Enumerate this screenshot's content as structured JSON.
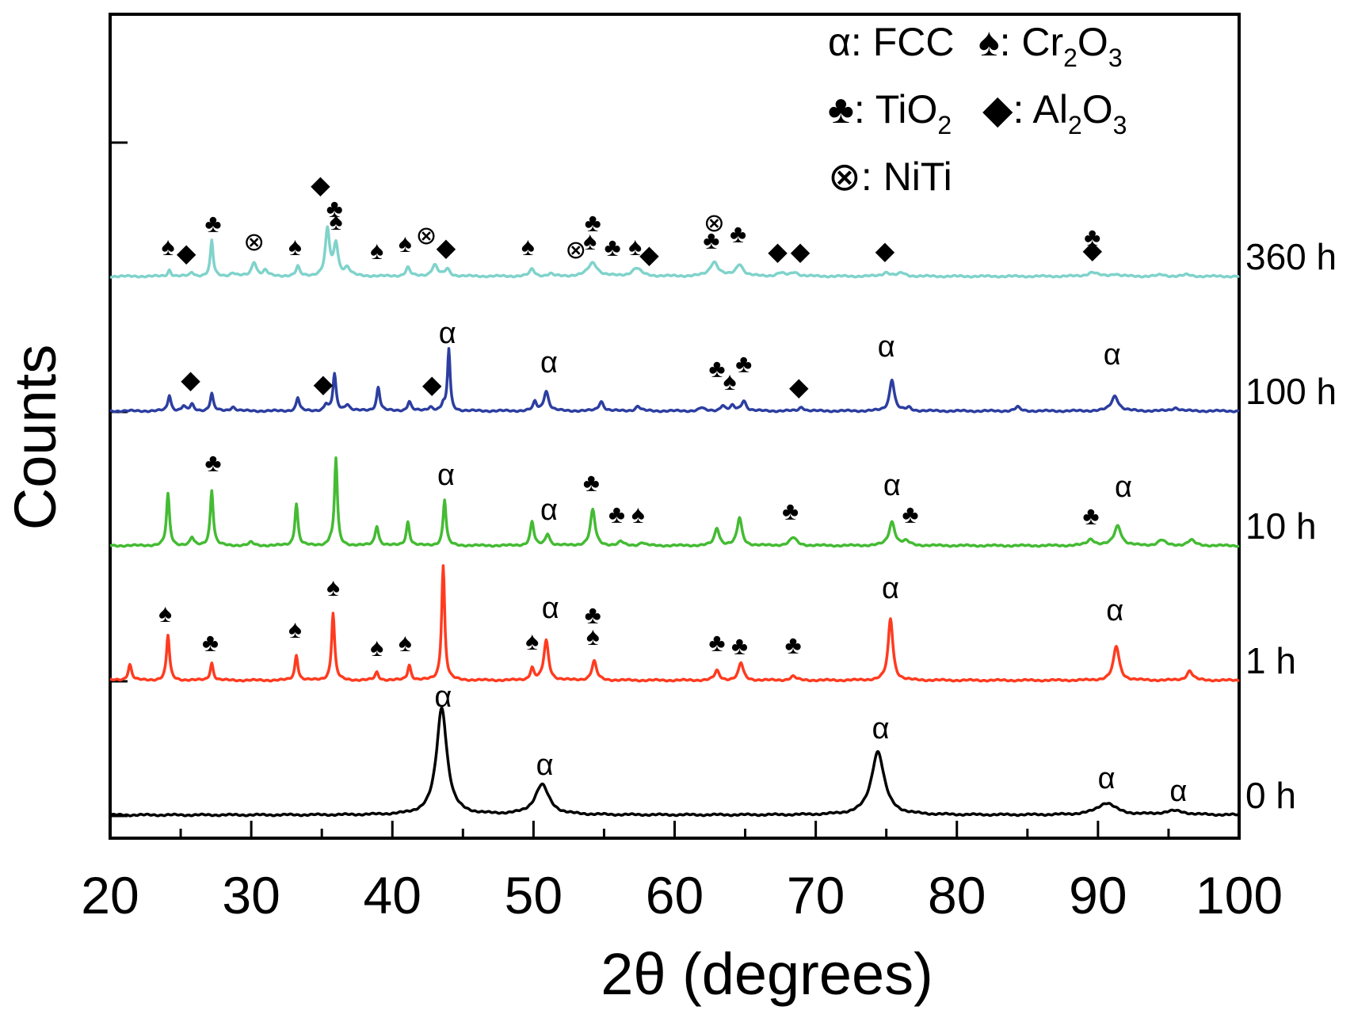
{
  "chart_data": {
    "type": "line",
    "title": "",
    "xlabel": "2θ (degrees)",
    "ylabel": "Counts",
    "xlim": [
      20,
      100
    ],
    "xticks": [
      "20",
      "30",
      "40",
      "50",
      "60",
      "70",
      "80",
      "90",
      "100"
    ],
    "grid": false,
    "legend_position": "top-right",
    "legend": [
      {
        "symbol": "α",
        "sep": ":",
        "name": "FCC",
        "base": "",
        "sub": ""
      },
      {
        "symbol": "spade",
        "sep": ":",
        "name": "",
        "base": "Cr",
        "sub": "2",
        "base2": "O",
        "sub2": "3"
      },
      {
        "symbol": "club",
        "sep": ":",
        "name": "",
        "base": "TiO",
        "sub": "2",
        "base2": "",
        "sub2": ""
      },
      {
        "symbol": "diamond",
        "sep": ":",
        "name": "",
        "base": "Al",
        "sub": "2",
        "base2": "O",
        "sub2": "3"
      },
      {
        "symbol": "⊗",
        "sep": ":",
        "name": "NiTi",
        "base": "",
        "sub": ""
      }
    ],
    "series": [
      {
        "name": "0 h",
        "color": "#000000",
        "offset": 0,
        "peaks": [
          [
            43.5,
            135,
            0.45
          ],
          [
            50.6,
            38,
            0.6
          ],
          [
            74.4,
            80,
            0.55
          ],
          [
            90.6,
            15,
            0.8
          ],
          [
            95.4,
            5,
            0.9
          ]
        ],
        "markers": [
          {
            "x": 43.6,
            "h": 138,
            "kind": "alpha"
          },
          {
            "x": 50.8,
            "h": 52,
            "kind": "alpha"
          },
          {
            "x": 74.6,
            "h": 98,
            "kind": "alpha"
          },
          {
            "x": 90.6,
            "h": 35,
            "kind": "alpha"
          },
          {
            "x": 95.7,
            "h": 19,
            "kind": "alpha"
          }
        ]
      },
      {
        "name": "1 h",
        "color": "#ff3b1f",
        "offset": 1,
        "peaks": [
          [
            21.4,
            20,
            0.15
          ],
          [
            24.1,
            57,
            0.13
          ],
          [
            27.2,
            22,
            0.13
          ],
          [
            33.2,
            32,
            0.13
          ],
          [
            35.8,
            85,
            0.13
          ],
          [
            38.9,
            10,
            0.15
          ],
          [
            41.2,
            19,
            0.14
          ],
          [
            43.6,
            145,
            0.13
          ],
          [
            49.9,
            15,
            0.15
          ],
          [
            50.9,
            50,
            0.2
          ],
          [
            54.3,
            24,
            0.2
          ],
          [
            63.0,
            12,
            0.2
          ],
          [
            64.7,
            22,
            0.2
          ],
          [
            68.4,
            5,
            0.25
          ],
          [
            75.3,
            78,
            0.2
          ],
          [
            91.3,
            43,
            0.25
          ],
          [
            96.5,
            12,
            0.25
          ]
        ],
        "markers": [
          {
            "x": 23.9,
            "h": 75,
            "kind": "spade"
          },
          {
            "x": 27.1,
            "h": 38,
            "kind": "club"
          },
          {
            "x": 33.1,
            "h": 55,
            "kind": "spade"
          },
          {
            "x": 35.8,
            "h": 108,
            "kind": "spade"
          },
          {
            "x": 38.9,
            "h": 32,
            "kind": "spade"
          },
          {
            "x": 40.9,
            "h": 38,
            "kind": "spade"
          },
          {
            "x": 49.9,
            "h": 40,
            "kind": "spade"
          },
          {
            "x": 51.2,
            "h": 80,
            "kind": "alpha"
          },
          {
            "x": 54.2,
            "h": 46,
            "kind": "spade"
          },
          {
            "x": 54.2,
            "h": 73,
            "kind": "club"
          },
          {
            "x": 63.0,
            "h": 38,
            "kind": "club"
          },
          {
            "x": 64.6,
            "h": 34,
            "kind": "club"
          },
          {
            "x": 68.4,
            "h": 35,
            "kind": "club"
          },
          {
            "x": 75.3,
            "h": 105,
            "kind": "alpha"
          },
          {
            "x": 91.2,
            "h": 77,
            "kind": "alpha"
          }
        ]
      },
      {
        "name": "10 h",
        "color": "#44bb33",
        "offset": 2,
        "peaks": [
          [
            24.1,
            65,
            0.13
          ],
          [
            25.8,
            10,
            0.15
          ],
          [
            27.2,
            70,
            0.13
          ],
          [
            30.0,
            4,
            0.2
          ],
          [
            33.2,
            53,
            0.13
          ],
          [
            35.6,
            5,
            0.15
          ],
          [
            36.0,
            110,
            0.12
          ],
          [
            38.9,
            25,
            0.15
          ],
          [
            41.1,
            30,
            0.14
          ],
          [
            43.7,
            58,
            0.13
          ],
          [
            49.9,
            30,
            0.15
          ],
          [
            51.0,
            15,
            0.18
          ],
          [
            54.2,
            45,
            0.2
          ],
          [
            56.2,
            5,
            0.2
          ],
          [
            57.7,
            4,
            0.2
          ],
          [
            63.0,
            22,
            0.2
          ],
          [
            64.6,
            35,
            0.2
          ],
          [
            68.4,
            10,
            0.3
          ],
          [
            75.4,
            30,
            0.25
          ],
          [
            76.4,
            5,
            0.3
          ],
          [
            89.5,
            8,
            0.3
          ],
          [
            91.4,
            25,
            0.3
          ],
          [
            94.5,
            7,
            0.3
          ],
          [
            96.6,
            7,
            0.3
          ]
        ],
        "markers": [
          {
            "x": 27.3,
            "h": 95,
            "kind": "club"
          },
          {
            "x": 43.8,
            "h": 78,
            "kind": "alpha"
          },
          {
            "x": 51.1,
            "h": 34,
            "kind": "alpha"
          },
          {
            "x": 54.1,
            "h": 70,
            "kind": "club"
          },
          {
            "x": 55.9,
            "h": 30,
            "kind": "club"
          },
          {
            "x": 57.4,
            "h": 30,
            "kind": "spade"
          },
          {
            "x": 68.2,
            "h": 34,
            "kind": "club"
          },
          {
            "x": 75.4,
            "h": 65,
            "kind": "alpha"
          },
          {
            "x": 76.7,
            "h": 30,
            "kind": "club"
          },
          {
            "x": 89.5,
            "h": 28,
            "kind": "club"
          },
          {
            "x": 91.8,
            "h": 63,
            "kind": "alpha"
          }
        ]
      },
      {
        "name": "100 h",
        "color": "#2c3ea0",
        "offset": 3,
        "peaks": [
          [
            24.2,
            20,
            0.13
          ],
          [
            25.2,
            6,
            0.15
          ],
          [
            25.8,
            8,
            0.15
          ],
          [
            27.2,
            22,
            0.13
          ],
          [
            28.7,
            5,
            0.2
          ],
          [
            33.3,
            17,
            0.13
          ],
          [
            35.3,
            8,
            0.15
          ],
          [
            35.9,
            46,
            0.13
          ],
          [
            36.8,
            8,
            0.2
          ],
          [
            39.0,
            30,
            0.14
          ],
          [
            41.2,
            12,
            0.15
          ],
          [
            42.7,
            5,
            0.2
          ],
          [
            43.6,
            8,
            0.13
          ],
          [
            44.0,
            78,
            0.11
          ],
          [
            50.1,
            11,
            0.15
          ],
          [
            50.9,
            25,
            0.2
          ],
          [
            54.8,
            12,
            0.2
          ],
          [
            57.4,
            6,
            0.2
          ],
          [
            61.9,
            4,
            0.2
          ],
          [
            63.4,
            7,
            0.18
          ],
          [
            64.1,
            6,
            0.18
          ],
          [
            64.9,
            13,
            0.2
          ],
          [
            69.0,
            5,
            0.2
          ],
          [
            75.4,
            40,
            0.2
          ],
          [
            76.6,
            4,
            0.2
          ],
          [
            84.3,
            5,
            0.2
          ],
          [
            91.2,
            19,
            0.3
          ],
          [
            95.5,
            4,
            0.3
          ]
        ],
        "markers": [
          {
            "x": 25.7,
            "h": 30,
            "kind": "diamond"
          },
          {
            "x": 35.1,
            "h": 25,
            "kind": "diamond"
          },
          {
            "x": 42.8,
            "h": 24,
            "kind": "diamond"
          },
          {
            "x": 43.9,
            "h": 87,
            "kind": "alpha"
          },
          {
            "x": 51.1,
            "h": 50,
            "kind": "alpha"
          },
          {
            "x": 63.0,
            "h": 44,
            "kind": "club"
          },
          {
            "x": 63.9,
            "h": 28,
            "kind": "spade"
          },
          {
            "x": 64.9,
            "h": 50,
            "kind": "club"
          },
          {
            "x": 68.8,
            "h": 21,
            "kind": "diamond"
          },
          {
            "x": 75.0,
            "h": 70,
            "kind": "alpha"
          },
          {
            "x": 91.0,
            "h": 60,
            "kind": "alpha"
          }
        ]
      },
      {
        "name": "360 h",
        "color": "#7fd3cb",
        "offset": 4,
        "peaks": [
          [
            24.2,
            8,
            0.13
          ],
          [
            25.8,
            5,
            0.15
          ],
          [
            27.2,
            45,
            0.12
          ],
          [
            28.7,
            4,
            0.2
          ],
          [
            30.2,
            18,
            0.2
          ],
          [
            31.0,
            7,
            0.2
          ],
          [
            33.3,
            12,
            0.15
          ],
          [
            35.4,
            58,
            0.18
          ],
          [
            36.0,
            40,
            0.18
          ],
          [
            36.8,
            10,
            0.25
          ],
          [
            41.1,
            11,
            0.18
          ],
          [
            43.0,
            14,
            0.25
          ],
          [
            43.9,
            9,
            0.2
          ],
          [
            49.9,
            9,
            0.2
          ],
          [
            51.2,
            3,
            0.2
          ],
          [
            54.2,
            17,
            0.4
          ],
          [
            57.3,
            10,
            0.4
          ],
          [
            62.8,
            18,
            0.35
          ],
          [
            64.6,
            15,
            0.3
          ],
          [
            67.5,
            4,
            0.3
          ],
          [
            68.5,
            5,
            0.3
          ],
          [
            75.0,
            5,
            0.3
          ],
          [
            76.1,
            4,
            0.3
          ],
          [
            89.6,
            5,
            0.4
          ],
          [
            91.2,
            3,
            0.3
          ],
          [
            94.5,
            2,
            0.3
          ],
          [
            96.3,
            2,
            0.3
          ]
        ],
        "markers": [
          {
            "x": 24.1,
            "h": 28,
            "kind": "spade"
          },
          {
            "x": 25.4,
            "h": 20,
            "kind": "diamond"
          },
          {
            "x": 27.3,
            "h": 57,
            "kind": "club"
          },
          {
            "x": 30.2,
            "h": 34,
            "kind": "niti"
          },
          {
            "x": 33.1,
            "h": 28,
            "kind": "spade"
          },
          {
            "x": 34.9,
            "h": 106,
            "kind": "diamond"
          },
          {
            "x": 35.9,
            "h": 76,
            "kind": "club"
          },
          {
            "x": 36.0,
            "h": 60,
            "kind": "spade"
          },
          {
            "x": 38.9,
            "h": 23,
            "kind": "spade"
          },
          {
            "x": 40.9,
            "h": 32,
            "kind": "spade"
          },
          {
            "x": 42.4,
            "h": 42,
            "kind": "niti"
          },
          {
            "x": 43.8,
            "h": 27,
            "kind": "diamond"
          },
          {
            "x": 49.6,
            "h": 28,
            "kind": "spade"
          },
          {
            "x": 53.0,
            "h": 24,
            "kind": "niti"
          },
          {
            "x": 54.0,
            "h": 35,
            "kind": "spade"
          },
          {
            "x": 54.2,
            "h": 58,
            "kind": "club"
          },
          {
            "x": 55.6,
            "h": 27,
            "kind": "club"
          },
          {
            "x": 57.2,
            "h": 28,
            "kind": "spade"
          },
          {
            "x": 58.2,
            "h": 18,
            "kind": "diamond"
          },
          {
            "x": 62.6,
            "h": 36,
            "kind": "club"
          },
          {
            "x": 62.8,
            "h": 58,
            "kind": "niti"
          },
          {
            "x": 64.5,
            "h": 44,
            "kind": "club"
          },
          {
            "x": 67.3,
            "h": 22,
            "kind": "diamond"
          },
          {
            "x": 68.9,
            "h": 22,
            "kind": "diamond"
          },
          {
            "x": 74.9,
            "h": 23,
            "kind": "diamond"
          },
          {
            "x": 89.6,
            "h": 24,
            "kind": "diamond"
          },
          {
            "x": 89.6,
            "h": 40,
            "kind": "club"
          }
        ]
      }
    ]
  }
}
